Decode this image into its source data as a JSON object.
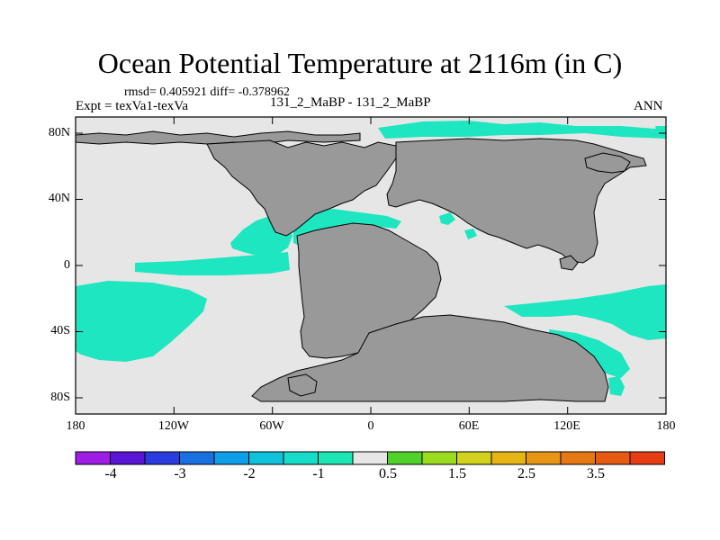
{
  "title": "Ocean Potential Temperature at 2116m (in C)",
  "stats": "rmsd= 0.405921 diff= -0.378962",
  "left_label": "Expt = texVa1-texVa",
  "center_label": "131_2_MaBP - 131_2_MaBP",
  "right_label": "ANN",
  "map": {
    "lon_labels": [
      "180",
      "120W",
      "60W",
      "0",
      "60E",
      "120E",
      "180"
    ],
    "lat_labels": [
      "80N",
      "40N",
      "0",
      "40S",
      "80S"
    ],
    "colors": {
      "land": "#999999",
      "ocean_neutral": "#e6e6e6",
      "anomaly": "#1de6c0",
      "coast": "#000000"
    }
  },
  "colorbar": {
    "colors": [
      "#9e1ee6",
      "#5a14d6",
      "#2a3be0",
      "#1a70e0",
      "#0f9ee8",
      "#10c1dc",
      "#16dcc8",
      "#1de6b4",
      "#e6e6e6",
      "#50d22a",
      "#9cdc1e",
      "#d2d21e",
      "#e6b414",
      "#e69614",
      "#e67814",
      "#e65a14",
      "#e63c14"
    ],
    "labels": [
      "-4",
      "-3",
      "-2",
      "-1",
      "0.5",
      "1.5",
      "2.5",
      "3.5"
    ]
  }
}
